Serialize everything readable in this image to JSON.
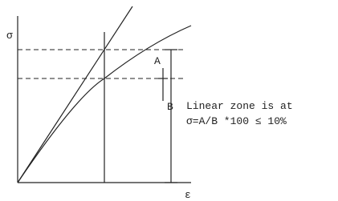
{
  "labels": {
    "y_axis": "σ",
    "x_axis": "ε",
    "a": "A",
    "b": "B"
  },
  "note": {
    "line1": "Linear zone is at",
    "line2": "σ=A/B *100 ≤ 10%"
  }
}
